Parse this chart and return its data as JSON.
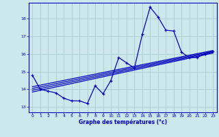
{
  "xlabel": "Graphe des températures (°c)",
  "background_color": "#cce8ec",
  "grid_color": "#aacccc",
  "line_color": "#0000bb",
  "xlim": [
    -0.5,
    23.5
  ],
  "ylim": [
    12.7,
    18.9
  ],
  "yticks": [
    13,
    14,
    15,
    16,
    17,
    18
  ],
  "xticks": [
    0,
    1,
    2,
    3,
    4,
    5,
    6,
    7,
    8,
    9,
    10,
    11,
    12,
    13,
    14,
    15,
    16,
    17,
    18,
    19,
    20,
    21,
    22,
    23
  ],
  "main_series_x": [
    0,
    1,
    2,
    3,
    4,
    5,
    6,
    7,
    8,
    9,
    10,
    11,
    12,
    13,
    14,
    15,
    16,
    17,
    18,
    19,
    20,
    21,
    22,
    23
  ],
  "main_series_y": [
    14.8,
    14.0,
    13.9,
    13.8,
    13.5,
    13.35,
    13.35,
    13.2,
    14.2,
    13.75,
    14.5,
    15.8,
    15.5,
    15.2,
    17.1,
    18.65,
    18.1,
    17.35,
    17.3,
    16.1,
    15.8,
    15.8,
    16.0,
    16.15
  ],
  "regression_lines": [
    {
      "x0": 0,
      "y0": 13.85,
      "x1": 23,
      "y1": 16.05
    },
    {
      "x0": 0,
      "y0": 13.95,
      "x1": 23,
      "y1": 16.1
    },
    {
      "x0": 0,
      "y0": 14.05,
      "x1": 23,
      "y1": 16.15
    },
    {
      "x0": 0,
      "y0": 14.15,
      "x1": 23,
      "y1": 16.2
    }
  ]
}
